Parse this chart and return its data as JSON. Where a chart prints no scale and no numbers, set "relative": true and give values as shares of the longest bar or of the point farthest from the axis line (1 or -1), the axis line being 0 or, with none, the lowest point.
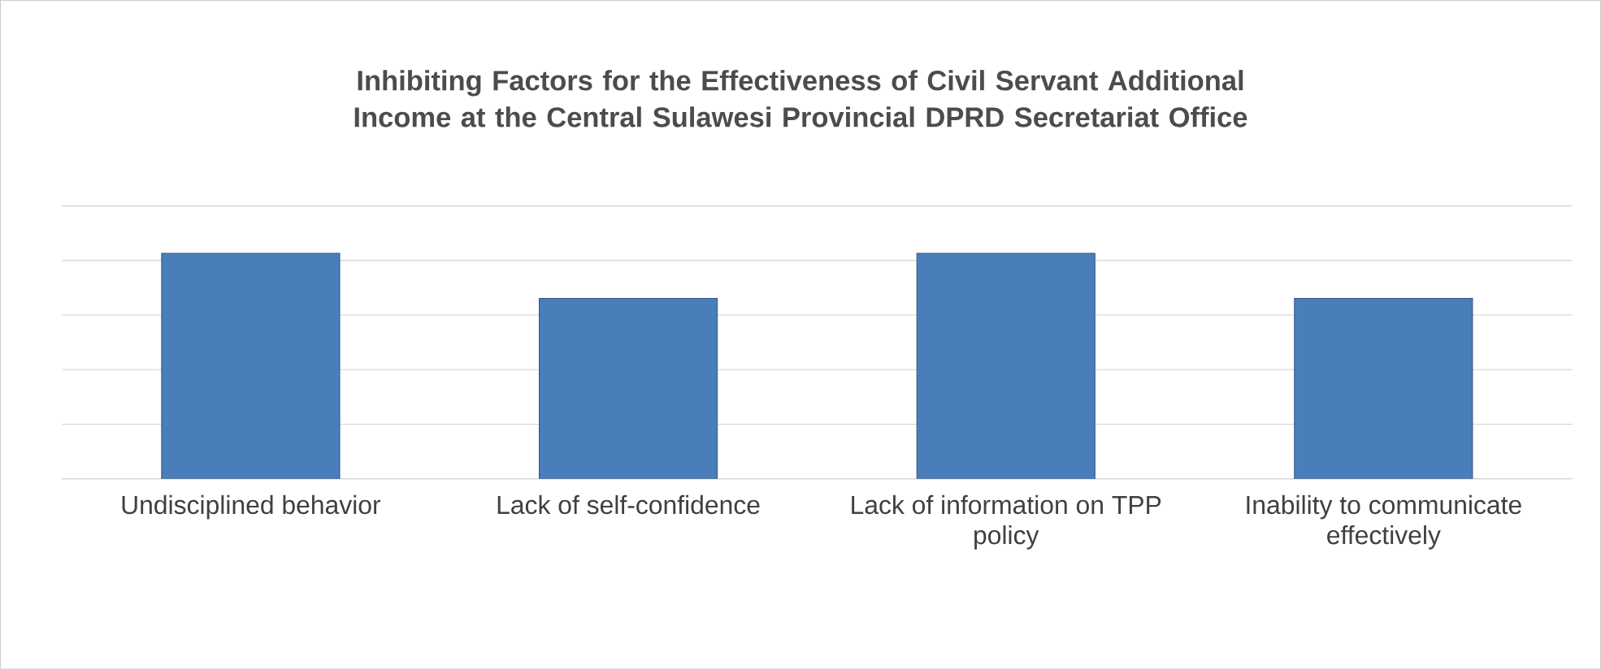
{
  "chart_data": {
    "type": "bar",
    "title": "Inhibiting Factors for the Effectiveness of Civil Servant Additional Income at the Central Sulawesi Provincial DPRD Secretariat Office",
    "categories": [
      "Undisciplined behavior",
      "Lack of self-confidence",
      "Lack of information on TPP policy",
      "Inability to communicate effectively"
    ],
    "values": [
      1,
      0.8,
      1,
      0.8
    ],
    "color": "#4a7ebb",
    "relative": true,
    "grid": "y"
  }
}
